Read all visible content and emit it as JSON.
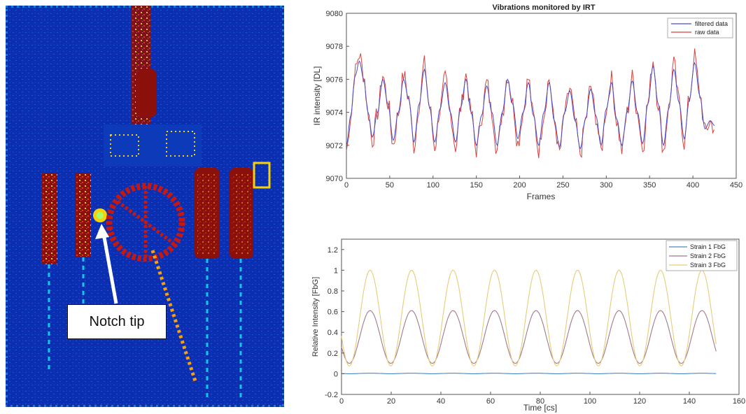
{
  "thermogram": {
    "annotation": "Notch tip",
    "colors": {
      "background": "#0b2fb0",
      "hot": "#8b0f0a",
      "warm": "#f5d20c",
      "mid": "#13c7e6"
    }
  },
  "chart_data": [
    {
      "type": "line",
      "title": "Vibrations monitored by IRT",
      "xlabel": "Frames",
      "ylabel": "IR intensity [DL]",
      "xlim": [
        0,
        450
      ],
      "ylim": [
        9070,
        9080
      ],
      "xticks": [
        "0",
        "50",
        "100",
        "150",
        "200",
        "250",
        "300",
        "350",
        "400",
        "450"
      ],
      "yticks": [
        "9070",
        "9072",
        "9074",
        "9076",
        "9078",
        "9080"
      ],
      "grid": false,
      "legend_position": "top-right",
      "series": [
        {
          "name": "filtered data",
          "color": "#4a4ec9",
          "x": [
            0,
            5,
            10,
            15,
            20,
            25,
            30,
            36,
            42,
            48,
            54,
            60,
            66,
            72,
            78,
            84,
            90,
            96,
            102,
            108,
            114,
            120,
            126,
            132,
            138,
            144,
            150,
            156,
            162,
            168,
            174,
            180,
            186,
            192,
            198,
            204,
            210,
            216,
            222,
            228,
            234,
            240,
            246,
            252,
            258,
            264,
            270,
            276,
            282,
            288,
            294,
            300,
            306,
            312,
            318,
            324,
            330,
            336,
            342,
            348,
            354,
            360,
            366,
            372,
            378,
            384,
            390,
            396,
            402,
            408,
            414,
            420,
            425
          ],
          "y": [
            9072.0,
            9073.8,
            9076.2,
            9077.1,
            9076.0,
            9074.0,
            9072.5,
            9074.0,
            9076.0,
            9074.5,
            9072.3,
            9074.0,
            9076.0,
            9074.8,
            9072.2,
            9074.5,
            9076.6,
            9074.3,
            9072.2,
            9074.2,
            9075.8,
            9074.0,
            9072.2,
            9074.3,
            9076.0,
            9074.0,
            9072.0,
            9073.8,
            9075.6,
            9074.0,
            9072.0,
            9074.0,
            9076.0,
            9074.5,
            9072.4,
            9074.0,
            9075.8,
            9073.8,
            9072.0,
            9074.0,
            9075.8,
            9073.5,
            9071.9,
            9074.0,
            9075.3,
            9073.5,
            9071.8,
            9073.6,
            9075.4,
            9073.8,
            9072.0,
            9074.2,
            9075.8,
            9073.6,
            9072.0,
            9074.0,
            9075.9,
            9074.0,
            9072.1,
            9074.5,
            9076.8,
            9074.5,
            9072.0,
            9074.2,
            9076.6,
            9074.6,
            9072.4,
            9074.8,
            9077.0,
            9075.0,
            9073.0,
            9073.5,
            9073.2
          ]
        },
        {
          "name": "raw data",
          "color": "#d9413b",
          "noise": 0.55,
          "peak_boost": 0.8
        }
      ]
    },
    {
      "type": "line",
      "title": "",
      "xlabel": "Time [cs]",
      "ylabel": "Relative Intensity [FbG]",
      "xlim": [
        0,
        160
      ],
      "ylim": [
        -0.2,
        1.3
      ],
      "xticks": [
        "0",
        "20",
        "40",
        "60",
        "80",
        "100",
        "120",
        "140",
        "160"
      ],
      "yticks": [
        "-0.2",
        "0",
        "0.2",
        "0.4",
        "0.6",
        "0.8",
        "1",
        "1.2"
      ],
      "grid": false,
      "legend_position": "top-right",
      "period": 16.7,
      "first_peak": 11.5,
      "x_range": [
        0,
        151
      ],
      "series": [
        {
          "name": "Strain 1 FbG",
          "color": "#4a86c8",
          "min": 0.0,
          "max": 0.005
        },
        {
          "name": "Strain 2 FbG",
          "color": "#a07a8c",
          "min": 0.1,
          "max": 0.61
        },
        {
          "name": "Strain 3 FbG",
          "color": "#e6cc78",
          "min": 0.075,
          "max": 1.0
        }
      ]
    }
  ]
}
